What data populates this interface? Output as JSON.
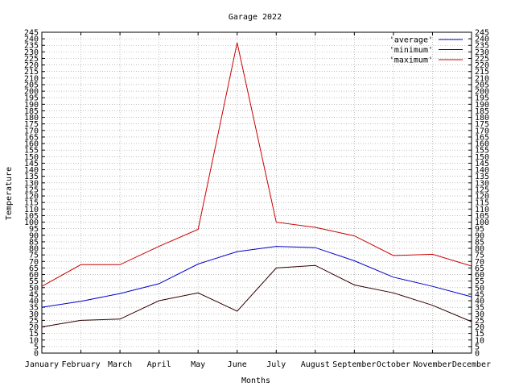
{
  "chart_data": {
    "type": "line",
    "title": "Garage 2022",
    "xlabel": "Months",
    "ylabel": "Temperature",
    "categories": [
      "January",
      "February",
      "March",
      "April",
      "May",
      "June",
      "July",
      "August",
      "September",
      "October",
      "November",
      "December"
    ],
    "ylim": [
      0,
      245
    ],
    "ytick_step": 5,
    "grid": true,
    "legend_position": "top-right",
    "series": [
      {
        "name": "'average'",
        "color": "#0000cc",
        "values": [
          35,
          39.5,
          45.5,
          53,
          68,
          77.5,
          81.5,
          80.5,
          70.5,
          58,
          51,
          43
        ]
      },
      {
        "name": "'minimum'",
        "color": "#330000",
        "values": [
          20,
          25,
          26,
          40,
          46,
          32,
          65,
          67,
          52,
          46,
          36.5,
          24
        ]
      },
      {
        "name": "'maximum'",
        "color": "#cc0000",
        "values": [
          51,
          67.5,
          67.5,
          81.5,
          94.5,
          237,
          100,
          96,
          89.5,
          74.5,
          75.5,
          66.5
        ]
      }
    ]
  }
}
